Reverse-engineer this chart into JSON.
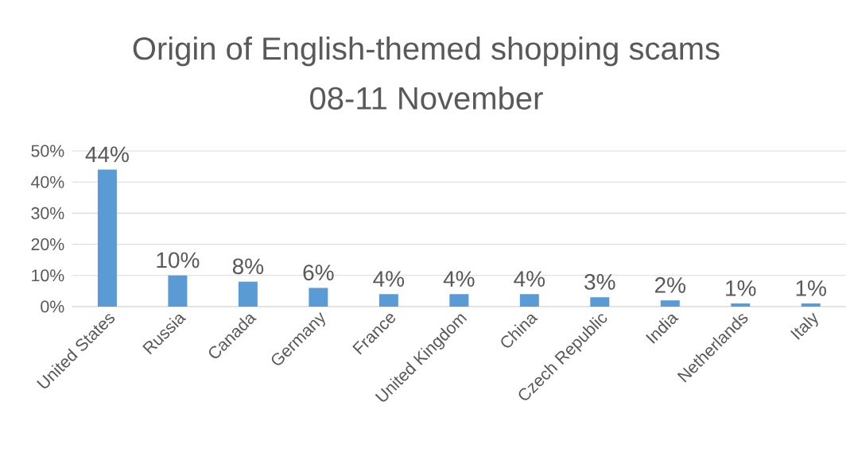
{
  "chart_data": {
    "type": "bar",
    "title": "Origin of English-themed shopping scams",
    "subtitle": "08-11 November",
    "categories": [
      "United States",
      "Russia",
      "Canada",
      "Germany",
      "France",
      "United Kingdom",
      "China",
      "Czech Republic",
      "India",
      "Netherlands",
      "Italy"
    ],
    "values": [
      44,
      10,
      8,
      6,
      4,
      4,
      4,
      3,
      2,
      1,
      1
    ],
    "value_labels": [
      "44%",
      "10%",
      "8%",
      "6%",
      "4%",
      "4%",
      "4%",
      "3%",
      "2%",
      "1%",
      "1%"
    ],
    "color": "#5b9bd5",
    "ylim": [
      0,
      50
    ],
    "yticks": [
      {
        "value": 0,
        "label": "0%"
      },
      {
        "value": 10,
        "label": "10%"
      },
      {
        "value": 20,
        "label": "20%"
      },
      {
        "value": 30,
        "label": "30%"
      },
      {
        "value": 40,
        "label": "40%"
      },
      {
        "value": 50,
        "label": "50%"
      }
    ],
    "grid": "y"
  }
}
